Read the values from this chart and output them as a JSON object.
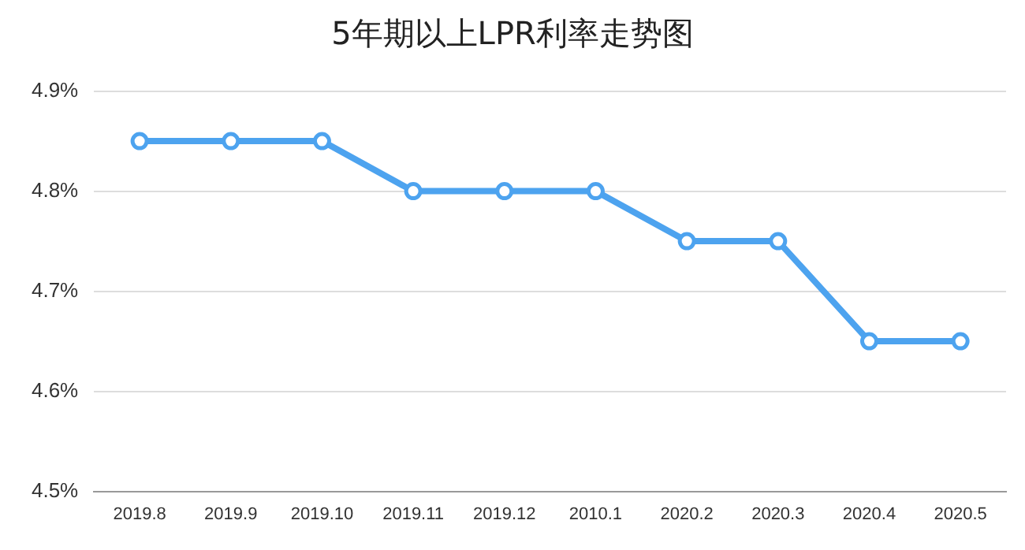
{
  "chart_data": {
    "type": "line",
    "title": "5年期以上LPR利率走势图",
    "categories": [
      "2019.8",
      "2019.9",
      "2019.10",
      "2019.11",
      "2019.12",
      "2010.1",
      "2020.2",
      "2020.3",
      "2020.4",
      "2020.5"
    ],
    "series": [
      {
        "color": "#4da3ef",
        "values": [
          4.85,
          4.85,
          4.85,
          4.8,
          4.8,
          4.8,
          4.75,
          4.75,
          4.65,
          4.65
        ]
      }
    ],
    "ylim": [
      4.5,
      4.9
    ],
    "yticks": [
      {
        "value": 4.5,
        "label": "4.5%"
      },
      {
        "value": 4.6,
        "label": "4.6%"
      },
      {
        "value": 4.7,
        "label": "4.7%"
      },
      {
        "value": 4.8,
        "label": "4.8%"
      },
      {
        "value": 4.9,
        "label": "4.9%"
      }
    ],
    "grid": "y",
    "legend": false,
    "marker": "circle",
    "line_style": "solid"
  }
}
